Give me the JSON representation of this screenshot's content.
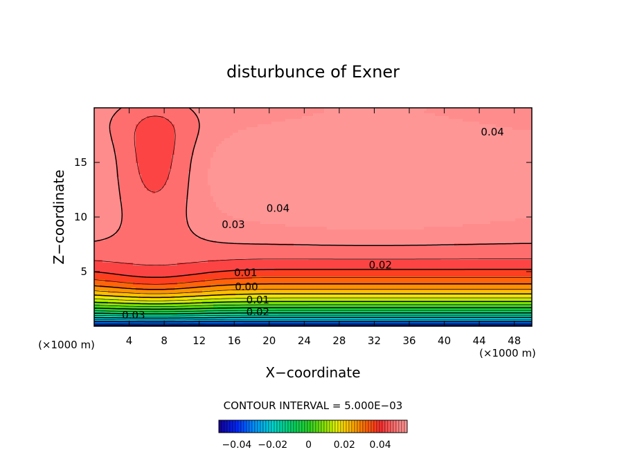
{
  "chart_data": {
    "type": "contour",
    "title": "disturbunce of Exner",
    "xlabel": "X−coordinate",
    "ylabel": "Z−coordinate",
    "x_unit_left": "(×1000 m)",
    "x_unit_right": "(×1000 m)",
    "xlim": [
      0,
      50
    ],
    "ylim": [
      0,
      20
    ],
    "xticks": [
      4,
      8,
      12,
      16,
      20,
      24,
      28,
      32,
      36,
      40,
      44,
      48
    ],
    "yticks": [
      5,
      10,
      15
    ],
    "contour_interval_text": "CONTOUR INTERVAL = 5.000E−03",
    "contour_interval": 0.005,
    "value_range": [
      -0.045,
      0.055
    ],
    "contour_labels": [
      {
        "text": "0.04",
        "x": 45.5,
        "z": 17.8
      },
      {
        "text": "0.04",
        "x": 21.0,
        "z": 10.8
      },
      {
        "text": "0.03",
        "x": 15.9,
        "z": 9.3
      },
      {
        "text": "0.02",
        "x": 32.7,
        "z": 5.6
      },
      {
        "text": "0.01",
        "x": 17.3,
        "z": 4.9
      },
      {
        "text": "0.00",
        "x": 17.4,
        "z": 3.6
      },
      {
        "text": "0.01",
        "x": 18.7,
        "z": 2.4
      },
      {
        "text": "0.02",
        "x": 18.7,
        "z": 1.3
      },
      {
        "text": "0.03",
        "x": 4.5,
        "z": 1.0
      }
    ],
    "colorbar": {
      "min": -0.05,
      "max": 0.055,
      "tick_labels": [
        {
          "text": "−0.04",
          "value": -0.04
        },
        {
          "text": "−0.02",
          "value": -0.02
        },
        {
          "text": "0",
          "value": 0
        },
        {
          "text": "0.02",
          "value": 0.02
        },
        {
          "text": "0.04",
          "value": 0.04
        }
      ]
    }
  }
}
